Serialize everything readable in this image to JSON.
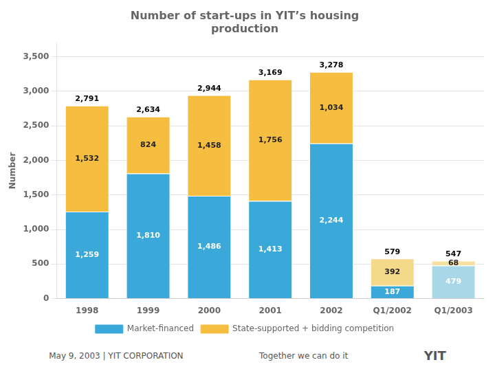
{
  "chart_data": {
    "type": "bar",
    "title": [
      "Number of start-ups in YIT’s housing",
      "production"
    ],
    "ylabel": "Number",
    "categories": [
      "1998",
      "1999",
      "2000",
      "2001",
      "2002",
      "Q1/2002",
      "Q1/2003"
    ],
    "series": [
      {
        "name": "Market-financed",
        "color": "#3AA8D8",
        "colors": [
          "#3AA8D8",
          "#3AA8D8",
          "#3AA8D8",
          "#3AA8D8",
          "#3AA8D8",
          "#3AA8D8",
          "#A8D8E8"
        ],
        "values": [
          1259,
          1810,
          1486,
          1413,
          2244,
          187,
          479
        ],
        "value_labels": [
          "1,259",
          "1,810",
          "1,486",
          "1,413",
          "2,244",
          "187",
          "479"
        ]
      },
      {
        "name": "State-supported + bidding competition",
        "color": "#F5BE41",
        "colors": [
          "#F5BE41",
          "#F5BE41",
          "#F5BE41",
          "#F5BE41",
          "#F5BE41",
          "#F5D98A",
          "#F5E0A0"
        ],
        "values": [
          1532,
          824,
          1458,
          1756,
          1034,
          392,
          68
        ],
        "value_labels": [
          "1,532",
          "824",
          "1,458",
          "1,756",
          "1,034",
          "392",
          "68"
        ]
      }
    ],
    "totals": {
      "values": [
        2791,
        2634,
        2944,
        3169,
        3278,
        579,
        547
      ],
      "value_labels": [
        "2,791",
        "2,634",
        "2,944",
        "3,169",
        "3,278",
        "579",
        "547"
      ]
    },
    "stacked": true,
    "data_labels": true,
    "grid": true,
    "legend": "bottom",
    "ylim": [
      0,
      3700
    ],
    "yticks": [
      0,
      500,
      {
        "value": 1000,
        "label": "1,000"
      },
      {
        "value": 1500,
        "label": "1,500"
      },
      {
        "value": 2000,
        "label": "2,000"
      },
      {
        "value": 2500,
        "label": "2,500"
      },
      {
        "value": 3000,
        "label": "3,000"
      },
      {
        "value": 3500,
        "label": "3,500"
      }
    ],
    "annotations": [
      "May 9, 2003  |  YIT CORPORATION",
      "Together we can do it",
      "YIT"
    ]
  }
}
